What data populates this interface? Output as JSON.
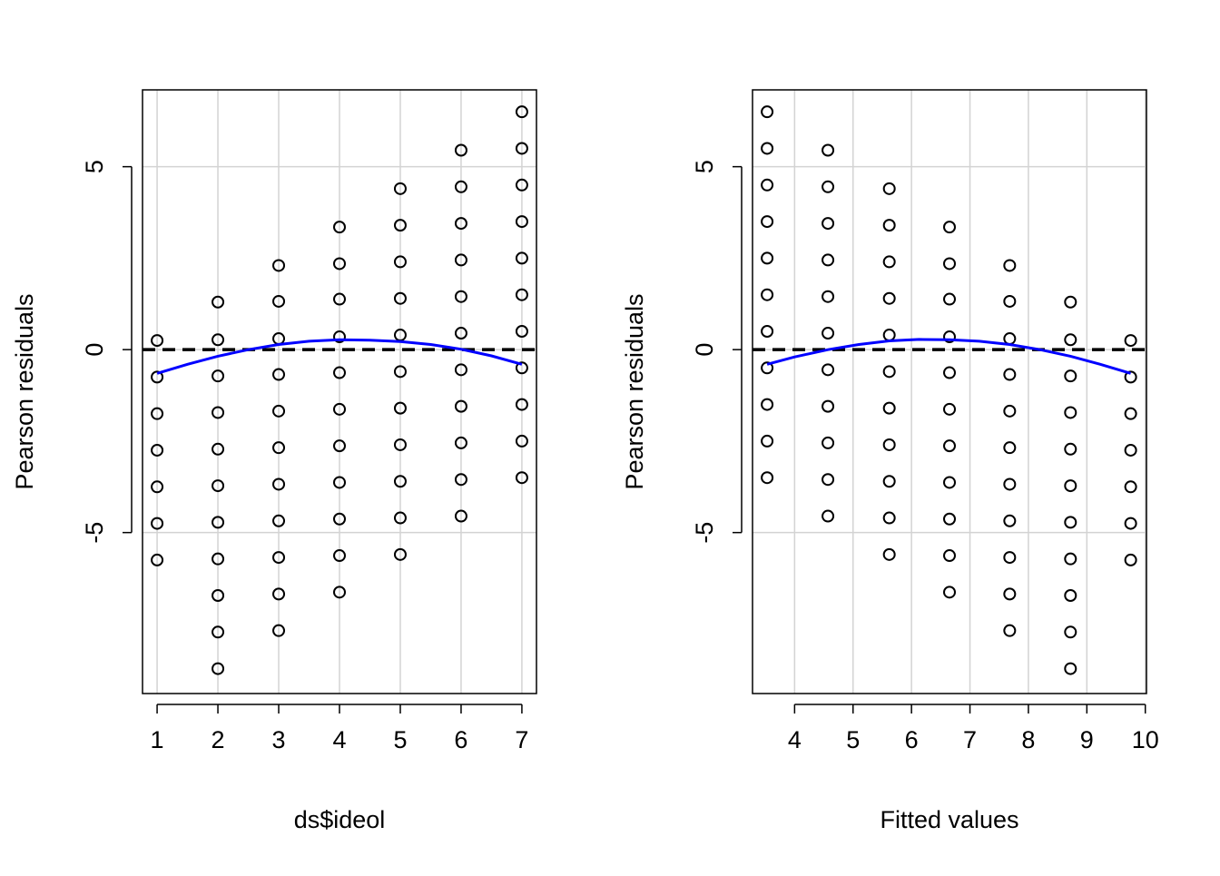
{
  "chart_data": [
    {
      "type": "scatter",
      "title": "",
      "xlabel": "ds$ideol",
      "ylabel": "Pearson residuals",
      "xlim": [
        0.76,
        7.24
      ],
      "ylim": [
        -9.4,
        7.1
      ],
      "x_ticks": [
        "1",
        "2",
        "3",
        "4",
        "5",
        "6",
        "7"
      ],
      "y_ticks": [
        "-5",
        "0",
        "5"
      ],
      "grid": true,
      "reference_line": {
        "y": 0,
        "style": "dashed",
        "color": "#000000"
      },
      "smooth_curve": {
        "color": "#0000ff",
        "x": [
          1,
          1.5,
          2,
          2.5,
          3,
          3.5,
          4,
          4.5,
          5,
          5.5,
          6,
          6.5,
          7
        ],
        "y": [
          -0.65,
          -0.4,
          -0.18,
          0,
          0.14,
          0.23,
          0.27,
          0.26,
          0.22,
          0.14,
          0.01,
          -0.17,
          -0.4
        ]
      },
      "points": [
        {
          "x": 1,
          "y": 0.25
        },
        {
          "x": 1,
          "y": -0.75
        },
        {
          "x": 1,
          "y": -1.75
        },
        {
          "x": 1,
          "y": -2.75
        },
        {
          "x": 1,
          "y": -3.75
        },
        {
          "x": 1,
          "y": -4.75
        },
        {
          "x": 1,
          "y": -5.75
        },
        {
          "x": 2,
          "y": 1.3
        },
        {
          "x": 2,
          "y": 0.27
        },
        {
          "x": 2,
          "y": -0.72
        },
        {
          "x": 2,
          "y": -1.72
        },
        {
          "x": 2,
          "y": -2.72
        },
        {
          "x": 2,
          "y": -3.72
        },
        {
          "x": 2,
          "y": -4.72
        },
        {
          "x": 2,
          "y": -5.72
        },
        {
          "x": 2,
          "y": -6.72
        },
        {
          "x": 2,
          "y": -7.72
        },
        {
          "x": 2,
          "y": -8.72
        },
        {
          "x": 3,
          "y": 2.3
        },
        {
          "x": 3,
          "y": 1.32
        },
        {
          "x": 3,
          "y": 0.3
        },
        {
          "x": 3,
          "y": -0.68
        },
        {
          "x": 3,
          "y": -1.68
        },
        {
          "x": 3,
          "y": -2.68
        },
        {
          "x": 3,
          "y": -3.68
        },
        {
          "x": 3,
          "y": -4.68
        },
        {
          "x": 3,
          "y": -5.68
        },
        {
          "x": 3,
          "y": -6.68
        },
        {
          "x": 3,
          "y": -7.68
        },
        {
          "x": 4,
          "y": 3.35
        },
        {
          "x": 4,
          "y": 2.35
        },
        {
          "x": 4,
          "y": 1.38
        },
        {
          "x": 4,
          "y": 0.35
        },
        {
          "x": 4,
          "y": -0.63
        },
        {
          "x": 4,
          "y": -1.63
        },
        {
          "x": 4,
          "y": -2.63
        },
        {
          "x": 4,
          "y": -3.63
        },
        {
          "x": 4,
          "y": -4.63
        },
        {
          "x": 4,
          "y": -5.63
        },
        {
          "x": 4,
          "y": -6.63
        },
        {
          "x": 5,
          "y": 4.4
        },
        {
          "x": 5,
          "y": 3.4
        },
        {
          "x": 5,
          "y": 2.4
        },
        {
          "x": 5,
          "y": 1.4
        },
        {
          "x": 5,
          "y": 0.4
        },
        {
          "x": 5,
          "y": -0.6
        },
        {
          "x": 5,
          "y": -1.6
        },
        {
          "x": 5,
          "y": -2.6
        },
        {
          "x": 5,
          "y": -3.6
        },
        {
          "x": 5,
          "y": -4.6
        },
        {
          "x": 5,
          "y": -5.6
        },
        {
          "x": 6,
          "y": 5.45
        },
        {
          "x": 6,
          "y": 4.45
        },
        {
          "x": 6,
          "y": 3.45
        },
        {
          "x": 6,
          "y": 2.45
        },
        {
          "x": 6,
          "y": 1.45
        },
        {
          "x": 6,
          "y": 0.45
        },
        {
          "x": 6,
          "y": -0.55
        },
        {
          "x": 6,
          "y": -1.55
        },
        {
          "x": 6,
          "y": -2.55
        },
        {
          "x": 6,
          "y": -3.55
        },
        {
          "x": 6,
          "y": -4.55
        },
        {
          "x": 7,
          "y": 6.5
        },
        {
          "x": 7,
          "y": 5.5
        },
        {
          "x": 7,
          "y": 4.5
        },
        {
          "x": 7,
          "y": 3.5
        },
        {
          "x": 7,
          "y": 2.5
        },
        {
          "x": 7,
          "y": 1.5
        },
        {
          "x": 7,
          "y": 0.5
        },
        {
          "x": 7,
          "y": -0.5
        },
        {
          "x": 7,
          "y": -1.5
        },
        {
          "x": 7,
          "y": -2.5
        },
        {
          "x": 7,
          "y": -3.5
        }
      ]
    },
    {
      "type": "scatter",
      "title": "",
      "xlabel": "Fitted values",
      "ylabel": "Pearson residuals",
      "xlim": [
        3.28,
        10.02
      ],
      "ylim": [
        -9.4,
        7.1
      ],
      "x_ticks": [
        "4",
        "5",
        "6",
        "7",
        "8",
        "9",
        "10"
      ],
      "y_ticks": [
        "-5",
        "0",
        "5"
      ],
      "grid": true,
      "reference_line": {
        "y": 0,
        "style": "dashed",
        "color": "#000000"
      },
      "smooth_curve": {
        "color": "#0000ff",
        "x": [
          3.53,
          4.0,
          4.57,
          5.1,
          5.62,
          6.13,
          6.65,
          7.16,
          7.68,
          8.2,
          8.72,
          9.23,
          9.75
        ],
        "y": [
          -0.4,
          -0.2,
          0,
          0.14,
          0.24,
          0.28,
          0.27,
          0.23,
          0.14,
          0,
          -0.18,
          -0.4,
          -0.65
        ]
      },
      "points": [
        {
          "x": 3.53,
          "y": 6.5
        },
        {
          "x": 3.53,
          "y": 5.5
        },
        {
          "x": 3.53,
          "y": 4.5
        },
        {
          "x": 3.53,
          "y": 3.5
        },
        {
          "x": 3.53,
          "y": 2.5
        },
        {
          "x": 3.53,
          "y": 1.5
        },
        {
          "x": 3.53,
          "y": 0.5
        },
        {
          "x": 3.53,
          "y": -0.5
        },
        {
          "x": 3.53,
          "y": -1.5
        },
        {
          "x": 3.53,
          "y": -2.5
        },
        {
          "x": 3.53,
          "y": -3.5
        },
        {
          "x": 4.57,
          "y": 5.45
        },
        {
          "x": 4.57,
          "y": 4.45
        },
        {
          "x": 4.57,
          "y": 3.45
        },
        {
          "x": 4.57,
          "y": 2.45
        },
        {
          "x": 4.57,
          "y": 1.45
        },
        {
          "x": 4.57,
          "y": 0.45
        },
        {
          "x": 4.57,
          "y": -0.55
        },
        {
          "x": 4.57,
          "y": -1.55
        },
        {
          "x": 4.57,
          "y": -2.55
        },
        {
          "x": 4.57,
          "y": -3.55
        },
        {
          "x": 4.57,
          "y": -4.55
        },
        {
          "x": 5.62,
          "y": 4.4
        },
        {
          "x": 5.62,
          "y": 3.4
        },
        {
          "x": 5.62,
          "y": 2.4
        },
        {
          "x": 5.62,
          "y": 1.4
        },
        {
          "x": 5.62,
          "y": 0.4
        },
        {
          "x": 5.62,
          "y": -0.6
        },
        {
          "x": 5.62,
          "y": -1.6
        },
        {
          "x": 5.62,
          "y": -2.6
        },
        {
          "x": 5.62,
          "y": -3.6
        },
        {
          "x": 5.62,
          "y": -4.6
        },
        {
          "x": 5.62,
          "y": -5.6
        },
        {
          "x": 6.65,
          "y": 3.35
        },
        {
          "x": 6.65,
          "y": 2.35
        },
        {
          "x": 6.65,
          "y": 1.38
        },
        {
          "x": 6.65,
          "y": 0.35
        },
        {
          "x": 6.65,
          "y": -0.63
        },
        {
          "x": 6.65,
          "y": -1.63
        },
        {
          "x": 6.65,
          "y": -2.63
        },
        {
          "x": 6.65,
          "y": -3.63
        },
        {
          "x": 6.65,
          "y": -4.63
        },
        {
          "x": 6.65,
          "y": -5.63
        },
        {
          "x": 6.65,
          "y": -6.63
        },
        {
          "x": 7.68,
          "y": 2.3
        },
        {
          "x": 7.68,
          "y": 1.32
        },
        {
          "x": 7.68,
          "y": 0.3
        },
        {
          "x": 7.68,
          "y": -0.68
        },
        {
          "x": 7.68,
          "y": -1.68
        },
        {
          "x": 7.68,
          "y": -2.68
        },
        {
          "x": 7.68,
          "y": -3.68
        },
        {
          "x": 7.68,
          "y": -4.68
        },
        {
          "x": 7.68,
          "y": -5.68
        },
        {
          "x": 7.68,
          "y": -6.68
        },
        {
          "x": 7.68,
          "y": -7.68
        },
        {
          "x": 8.72,
          "y": 1.3
        },
        {
          "x": 8.72,
          "y": 0.27
        },
        {
          "x": 8.72,
          "y": -0.72
        },
        {
          "x": 8.72,
          "y": -1.72
        },
        {
          "x": 8.72,
          "y": -2.72
        },
        {
          "x": 8.72,
          "y": -3.72
        },
        {
          "x": 8.72,
          "y": -4.72
        },
        {
          "x": 8.72,
          "y": -5.72
        },
        {
          "x": 8.72,
          "y": -6.72
        },
        {
          "x": 8.72,
          "y": -7.72
        },
        {
          "x": 8.72,
          "y": -8.72
        },
        {
          "x": 9.75,
          "y": 0.25
        },
        {
          "x": 9.75,
          "y": -0.75
        },
        {
          "x": 9.75,
          "y": -1.75
        },
        {
          "x": 9.75,
          "y": -2.75
        },
        {
          "x": 9.75,
          "y": -3.75
        },
        {
          "x": 9.75,
          "y": -4.75
        },
        {
          "x": 9.75,
          "y": -5.75
        }
      ]
    }
  ]
}
